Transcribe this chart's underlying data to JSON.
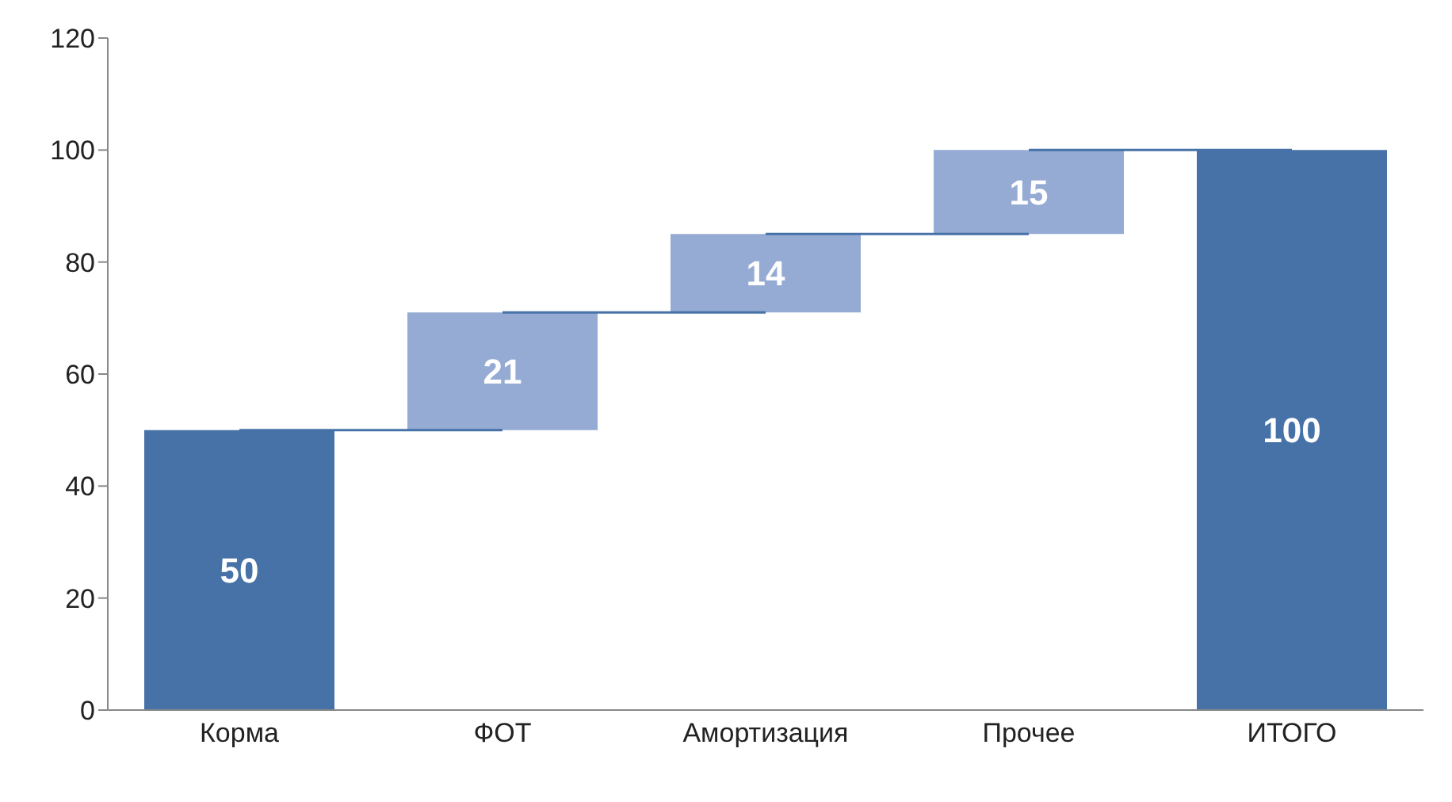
{
  "chart_data": {
    "type": "bar",
    "categories": [
      "Корма",
      "ФОТ",
      "Амортизация",
      "Прочее",
      "ИТОГО"
    ],
    "values": [
      50,
      21,
      14,
      15,
      100
    ],
    "base": [
      0,
      50,
      71,
      85,
      0
    ],
    "colors": [
      "#4672a7",
      "#95abd4",
      "#95abd4",
      "#95abd4",
      "#4672a7"
    ],
    "data_labels": true,
    "grid": false,
    "ylim": [
      0,
      120
    ],
    "yticks": [
      0,
      20,
      40,
      60,
      80,
      100,
      120
    ]
  }
}
